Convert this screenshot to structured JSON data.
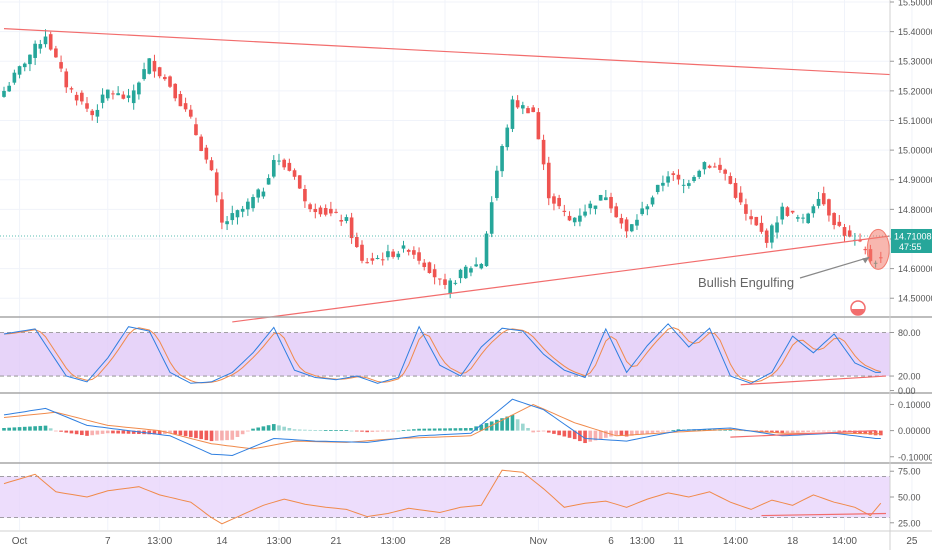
{
  "colors": {
    "up": "#26a69a",
    "down": "#ef5350",
    "trendline": "#f26d6d",
    "stoch_k": "#2f7fe0",
    "stoch_d": "#f08a4b",
    "stoch_band": "#e1c9f7",
    "rsi_line": "#f08a4b",
    "rsi_band": "#e9d4fb",
    "macd_line": "#2f7fe0",
    "signal_line": "#f08a4b",
    "hist_up": "#26a69a",
    "hist_down": "#ef5350",
    "price_tag_bg": "#26a69a",
    "annotation_ellipse": "#f27b6e",
    "grid": "#f0f3fa",
    "axis_text": "#555555"
  },
  "chart_data": [
    {
      "type": "candlestick",
      "panel": "price",
      "ylim": [
        14.44,
        15.5
      ],
      "y_ticks": [
        "15.50000",
        "15.40000",
        "15.30000",
        "15.20000",
        "15.10000",
        "15.00000",
        "14.90000",
        "14.80000",
        "14.70000",
        "14.60000",
        "14.50000"
      ],
      "y_tick_values": [
        15.5,
        15.4,
        15.3,
        15.2,
        15.1,
        15.0,
        14.9,
        14.8,
        14.7,
        14.6,
        14.5
      ],
      "current_price": 14.71008,
      "current_price_label": "14.71008",
      "countdown_label": "47:55",
      "annotation": "Bullish Engulfing",
      "grid": true,
      "trendlines": [
        {
          "from": [
            0,
            15.41
          ],
          "to": [
            172,
            15.255
          ]
        },
        {
          "from": [
            44,
            14.42
          ],
          "to": [
            172,
            14.71
          ]
        }
      ],
      "anchors": [
        [
          0,
          15.2
        ],
        [
          4,
          15.3
        ],
        [
          8,
          15.39
        ],
        [
          12,
          15.22
        ],
        [
          17,
          15.12
        ],
        [
          20,
          15.2
        ],
        [
          24,
          15.17
        ],
        [
          28,
          15.3
        ],
        [
          32,
          15.22
        ],
        [
          36,
          15.1
        ],
        [
          40,
          14.92
        ],
        [
          42,
          14.75
        ],
        [
          46,
          14.8
        ],
        [
          50,
          14.87
        ],
        [
          52,
          14.97
        ],
        [
          56,
          14.92
        ],
        [
          58,
          14.82
        ],
        [
          62,
          14.79
        ],
        [
          66,
          14.76
        ],
        [
          69,
          14.62
        ],
        [
          73,
          14.64
        ],
        [
          78,
          14.67
        ],
        [
          82,
          14.6
        ],
        [
          85,
          14.53
        ],
        [
          89,
          14.6
        ],
        [
          92,
          14.62
        ],
        [
          95,
          14.93
        ],
        [
          98,
          15.16
        ],
        [
          102,
          15.13
        ],
        [
          105,
          14.85
        ],
        [
          109,
          14.76
        ],
        [
          112,
          14.8
        ],
        [
          116,
          14.85
        ],
        [
          120,
          14.72
        ],
        [
          124,
          14.82
        ],
        [
          128,
          14.92
        ],
        [
          131,
          14.88
        ],
        [
          135,
          14.96
        ],
        [
          139,
          14.92
        ],
        [
          143,
          14.78
        ],
        [
          147,
          14.7
        ],
        [
          150,
          14.8
        ],
        [
          154,
          14.76
        ],
        [
          157,
          14.85
        ],
        [
          160,
          14.76
        ],
        [
          163,
          14.7
        ],
        [
          165,
          14.68
        ],
        [
          167,
          14.63
        ]
      ]
    },
    {
      "type": "line",
      "panel": "stochastic",
      "ylim": [
        -2,
        100
      ],
      "y_ticks": [
        "80.00",
        "20.00",
        "0.00"
      ],
      "y_tick_values": [
        80,
        20,
        0
      ],
      "band": [
        20,
        80
      ],
      "anchors": [
        [
          0,
          78
        ],
        [
          6,
          85
        ],
        [
          12,
          20
        ],
        [
          16,
          12
        ],
        [
          20,
          45
        ],
        [
          24,
          88
        ],
        [
          28,
          82
        ],
        [
          32,
          25
        ],
        [
          36,
          10
        ],
        [
          40,
          12
        ],
        [
          44,
          25
        ],
        [
          48,
          52
        ],
        [
          52,
          87
        ],
        [
          56,
          28
        ],
        [
          60,
          18
        ],
        [
          64,
          15
        ],
        [
          68,
          20
        ],
        [
          72,
          10
        ],
        [
          76,
          18
        ],
        [
          80,
          88
        ],
        [
          84,
          35
        ],
        [
          88,
          20
        ],
        [
          92,
          60
        ],
        [
          96,
          86
        ],
        [
          100,
          82
        ],
        [
          104,
          50
        ],
        [
          108,
          28
        ],
        [
          112,
          18
        ],
        [
          116,
          85
        ],
        [
          120,
          25
        ],
        [
          124,
          62
        ],
        [
          128,
          92
        ],
        [
          132,
          60
        ],
        [
          136,
          86
        ],
        [
          140,
          20
        ],
        [
          144,
          10
        ],
        [
          148,
          25
        ],
        [
          152,
          75
        ],
        [
          156,
          52
        ],
        [
          160,
          78
        ],
        [
          164,
          38
        ],
        [
          168,
          25
        ]
      ],
      "trendline": {
        "from": [
          142,
          8
        ],
        "to": [
          170,
          20
        ]
      }
    },
    {
      "type": "macd",
      "panel": "macd",
      "ylim": [
        -0.12,
        0.14
      ],
      "y_ticks": [
        "0.10000",
        "0.00000",
        "-0.10000"
      ],
      "y_tick_values": [
        0.1,
        0.0,
        -0.1
      ],
      "macd_anchors": [
        [
          0,
          0.06
        ],
        [
          8,
          0.085
        ],
        [
          16,
          0.02
        ],
        [
          24,
          0.0
        ],
        [
          32,
          -0.02
        ],
        [
          40,
          -0.09
        ],
        [
          44,
          -0.095
        ],
        [
          52,
          -0.03
        ],
        [
          60,
          -0.04
        ],
        [
          70,
          -0.045
        ],
        [
          80,
          -0.02
        ],
        [
          90,
          -0.01
        ],
        [
          98,
          0.12
        ],
        [
          104,
          0.08
        ],
        [
          112,
          -0.03
        ],
        [
          120,
          -0.04
        ],
        [
          130,
          0.0
        ],
        [
          140,
          0.01
        ],
        [
          150,
          -0.02
        ],
        [
          160,
          -0.01
        ],
        [
          168,
          -0.03
        ]
      ],
      "signal_anchors": [
        [
          0,
          0.05
        ],
        [
          10,
          0.07
        ],
        [
          20,
          0.02
        ],
        [
          30,
          0.0
        ],
        [
          40,
          -0.05
        ],
        [
          48,
          -0.07
        ],
        [
          56,
          -0.04
        ],
        [
          66,
          -0.045
        ],
        [
          76,
          -0.03
        ],
        [
          90,
          -0.02
        ],
        [
          102,
          0.1
        ],
        [
          110,
          0.03
        ],
        [
          118,
          -0.02
        ],
        [
          130,
          -0.005
        ],
        [
          140,
          0.005
        ],
        [
          150,
          -0.01
        ],
        [
          160,
          -0.01
        ],
        [
          168,
          -0.012
        ]
      ],
      "trendline": {
        "from": [
          140,
          -0.025
        ],
        "to": [
          172,
          0.0
        ]
      }
    },
    {
      "type": "line",
      "panel": "rsi",
      "ylim": [
        18,
        82
      ],
      "y_ticks": [
        "75.00",
        "50.00",
        "25.00"
      ],
      "y_tick_values": [
        75,
        50,
        25
      ],
      "band": [
        30,
        70
      ],
      "anchors": [
        [
          0,
          63
        ],
        [
          6,
          72
        ],
        [
          10,
          55
        ],
        [
          16,
          50
        ],
        [
          20,
          56
        ],
        [
          26,
          60
        ],
        [
          30,
          52
        ],
        [
          36,
          45
        ],
        [
          40,
          30
        ],
        [
          42,
          24
        ],
        [
          46,
          33
        ],
        [
          50,
          42
        ],
        [
          54,
          48
        ],
        [
          58,
          43
        ],
        [
          62,
          40
        ],
        [
          66,
          38
        ],
        [
          70,
          31
        ],
        [
          74,
          34
        ],
        [
          78,
          39
        ],
        [
          84,
          35
        ],
        [
          88,
          40
        ],
        [
          92,
          42
        ],
        [
          96,
          76
        ],
        [
          100,
          74
        ],
        [
          104,
          58
        ],
        [
          108,
          40
        ],
        [
          112,
          44
        ],
        [
          116,
          46
        ],
        [
          120,
          40
        ],
        [
          124,
          48
        ],
        [
          128,
          54
        ],
        [
          132,
          50
        ],
        [
          136,
          55
        ],
        [
          140,
          45
        ],
        [
          144,
          38
        ],
        [
          148,
          47
        ],
        [
          152,
          42
        ],
        [
          156,
          52
        ],
        [
          160,
          45
        ],
        [
          164,
          40
        ],
        [
          167,
          32
        ],
        [
          169,
          44
        ]
      ],
      "trendline": {
        "from": [
          146,
          32
        ],
        "to": [
          170,
          34
        ]
      }
    }
  ],
  "x_axis": {
    "labels": [
      {
        "text": "Oct",
        "i": 3
      },
      {
        "text": "7",
        "i": 20
      },
      {
        "text": "13:00",
        "i": 30
      },
      {
        "text": "14",
        "i": 42
      },
      {
        "text": "13:00",
        "i": 53
      },
      {
        "text": "21",
        "i": 64
      },
      {
        "text": "13:00",
        "i": 75
      },
      {
        "text": "28",
        "i": 85
      },
      {
        "text": "Nov",
        "i": 103
      },
      {
        "text": "6",
        "i": 117
      },
      {
        "text": "13:00",
        "i": 123
      },
      {
        "text": "11",
        "i": 130
      },
      {
        "text": "14:00",
        "i": 141
      },
      {
        "text": "18",
        "i": 152
      },
      {
        "text": "14:00",
        "i": 162
      },
      {
        "text": "25",
        "i": 175
      }
    ],
    "candle_count": 170
  }
}
